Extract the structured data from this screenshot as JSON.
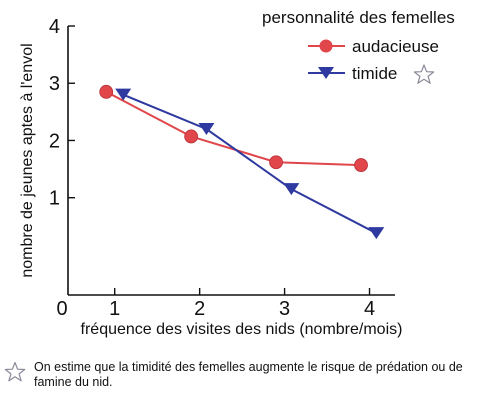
{
  "chart_data": {
    "type": "line",
    "title": "",
    "xlabel": "fréquence des visites des nids (nombre/mois)",
    "ylabel": "nombre de jeunes aptes à l'envol",
    "origin_label": "0",
    "xticks": [
      "1",
      "2",
      "3",
      "4"
    ],
    "yticks": [
      "1",
      "2",
      "3",
      "4"
    ],
    "xlim": [
      0.45,
      4.3
    ],
    "ylim": [
      -0.7,
      4
    ],
    "grid": false,
    "legend": {
      "title": "personnalité des femelles",
      "placement": "top-right"
    },
    "series": [
      {
        "name": "audacieuse",
        "marker": "circle",
        "color": "#e0464a",
        "points": [
          [
            0.9,
            2.85
          ],
          [
            1.9,
            2.07
          ],
          [
            2.9,
            1.62
          ],
          [
            3.9,
            1.57
          ]
        ]
      },
      {
        "name": "timide",
        "marker": "triangle-down",
        "color": "#2f3aa0",
        "points": [
          [
            1.1,
            2.8
          ],
          [
            2.08,
            2.2
          ],
          [
            3.08,
            1.15
          ],
          [
            4.08,
            0.38
          ]
        ]
      }
    ]
  },
  "footnote": {
    "icon": "star-outline-icon",
    "text": "On estime que la timidité des femelles augmente le risque de prédation ou de famine du nid."
  }
}
